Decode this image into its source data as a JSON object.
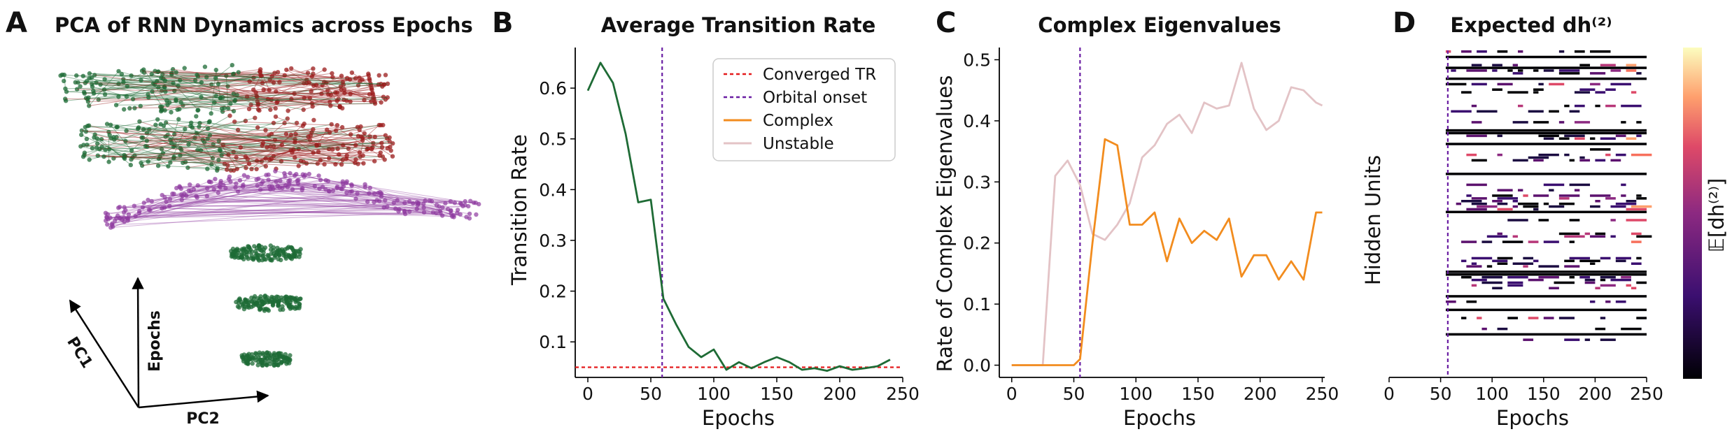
{
  "panels": {
    "a": {
      "label": "A",
      "title": "PCA of RNN Dynamics across Epochs",
      "axis_labels": [
        "PC1",
        "PC2",
        "Epochs"
      ]
    },
    "b": {
      "label": "B"
    },
    "c": {
      "label": "C"
    },
    "d": {
      "label": "D"
    }
  },
  "colors": {
    "green": "#1e6b35",
    "red": "#9b1c1c",
    "purple": "#8e3a9f",
    "orange": "#f28c1e",
    "pink": "#e3c3c6",
    "converged": "#e41a1c",
    "onset": "#6a1ea3"
  },
  "chart_data": [
    {
      "type": "line",
      "panel": "B",
      "title": "Average Transition Rate",
      "xlabel": "Epochs",
      "ylabel": "Transition Rate",
      "xlim": [
        -10,
        250
      ],
      "ylim": [
        0.03,
        0.68
      ],
      "xticks": [
        "0",
        "50",
        "100",
        "150",
        "200",
        "250"
      ],
      "yticks": [
        "0.1",
        "0.2",
        "0.3",
        "0.4",
        "0.5",
        "0.6"
      ],
      "series": [
        {
          "name": "",
          "x": [
            0,
            10,
            20,
            30,
            40,
            50,
            60,
            70,
            80,
            90,
            100,
            110,
            120,
            130,
            140,
            150,
            160,
            170,
            180,
            190,
            200,
            210,
            220,
            230,
            240
          ],
          "y": [
            0.595,
            0.65,
            0.61,
            0.51,
            0.375,
            0.38,
            0.185,
            0.135,
            0.09,
            0.07,
            0.085,
            0.045,
            0.06,
            0.048,
            0.06,
            0.07,
            0.06,
            0.045,
            0.048,
            0.043,
            0.052,
            0.045,
            0.048,
            0.052,
            0.065
          ]
        }
      ],
      "hlines": [
        {
          "y": 0.05,
          "label": "Converged TR"
        }
      ],
      "vlines": [
        {
          "x": 59,
          "label": "Orbital onset"
        }
      ],
      "legend": {
        "position": "top-right",
        "entries": [
          "Converged TR",
          "Orbital onset",
          "Complex",
          "Unstable"
        ]
      }
    },
    {
      "type": "line",
      "panel": "C",
      "title": "Complex Eigenvalues",
      "xlabel": "Epochs",
      "ylabel": "Rate of Complex Eigenvalues",
      "xlim": [
        -10,
        252
      ],
      "ylim": [
        -0.02,
        0.52
      ],
      "xticks": [
        "0",
        "50",
        "100",
        "150",
        "200",
        "250"
      ],
      "yticks": [
        "0.0",
        "0.1",
        "0.2",
        "0.3",
        "0.4",
        "0.5"
      ],
      "series": [
        {
          "name": "Unstable",
          "x": [
            0,
            10,
            20,
            25,
            35,
            45,
            55,
            65,
            75,
            85,
            95,
            105,
            115,
            125,
            135,
            145,
            155,
            165,
            175,
            185,
            195,
            205,
            215,
            225,
            235,
            245,
            250
          ],
          "y": [
            0,
            0,
            0,
            0,
            0.31,
            0.335,
            0.295,
            0.215,
            0.205,
            0.23,
            0.265,
            0.34,
            0.36,
            0.395,
            0.41,
            0.38,
            0.43,
            0.42,
            0.425,
            0.495,
            0.42,
            0.385,
            0.4,
            0.455,
            0.45,
            0.43,
            0.425
          ]
        },
        {
          "name": "Complex",
          "x": [
            0,
            10,
            20,
            30,
            40,
            50,
            55,
            65,
            75,
            85,
            95,
            105,
            115,
            125,
            135,
            145,
            155,
            165,
            175,
            185,
            195,
            205,
            215,
            225,
            235,
            245,
            250
          ],
          "y": [
            0,
            0,
            0,
            0,
            0,
            0,
            0.01,
            0.2,
            0.37,
            0.36,
            0.23,
            0.23,
            0.25,
            0.17,
            0.24,
            0.2,
            0.22,
            0.205,
            0.24,
            0.145,
            0.18,
            0.18,
            0.14,
            0.17,
            0.14,
            0.25,
            0.25
          ]
        }
      ],
      "vlines": [
        {
          "x": 55,
          "label": "Orbital onset"
        }
      ]
    },
    {
      "type": "heatmap",
      "panel": "D",
      "title": "Expected dh⁽²⁾",
      "xlabel": "Epochs",
      "ylabel": "Hidden Units",
      "xlim": [
        0,
        250
      ],
      "xticks": [
        "0",
        "50",
        "100",
        "150",
        "200",
        "250"
      ],
      "colorbar_label": "𝔼[dh⁽²⁾]",
      "vlines": [
        {
          "x": 57,
          "label": "Orbital onset"
        }
      ]
    }
  ]
}
